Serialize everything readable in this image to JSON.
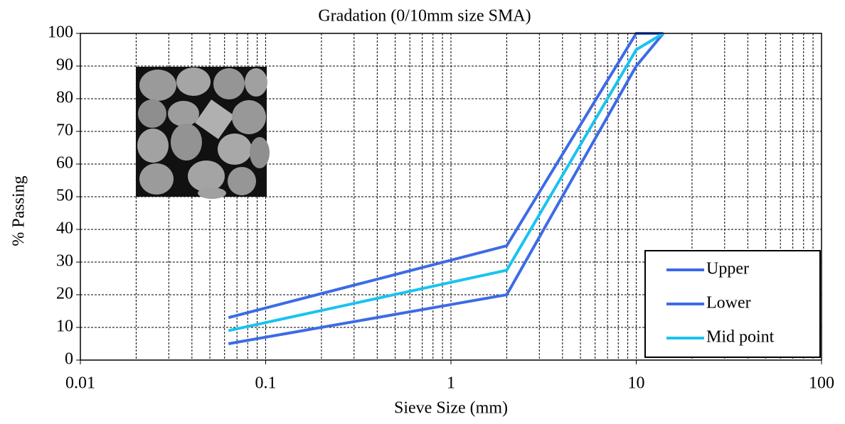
{
  "chart_data": {
    "type": "line",
    "title": "Gradation (0/10mm size SMA)",
    "x_label": "Sieve Size (mm)",
    "y_label": "% Passing",
    "xscale": "log",
    "x": [
      0.063,
      2,
      10,
      14
    ],
    "series": [
      {
        "name": "Upper",
        "color": "#3d6be6",
        "values": [
          13,
          35,
          100,
          100
        ]
      },
      {
        "name": "Lower",
        "color": "#3d6be6",
        "values": [
          5,
          20,
          90,
          100
        ]
      },
      {
        "name": "Mid point",
        "color": "#19c3ef",
        "values": [
          9,
          27.5,
          95,
          100
        ]
      }
    ],
    "xlim": [
      0.01,
      100
    ],
    "xticks": [
      0.01,
      0.1,
      1,
      10,
      100
    ],
    "xminorticks": [
      0.02,
      0.03,
      0.04,
      0.05,
      0.06,
      0.07,
      0.08,
      0.09,
      0.2,
      0.3,
      0.4,
      0.5,
      0.6,
      0.7,
      0.8,
      0.9,
      2,
      3,
      4,
      5,
      6,
      7,
      8,
      9,
      20,
      30,
      40,
      50,
      60,
      70,
      80,
      90
    ],
    "ylim": [
      0,
      100
    ],
    "yticks": [
      0,
      10,
      20,
      30,
      40,
      50,
      60,
      70,
      80,
      90,
      100
    ],
    "grid": true,
    "legend": "lower-right"
  }
}
